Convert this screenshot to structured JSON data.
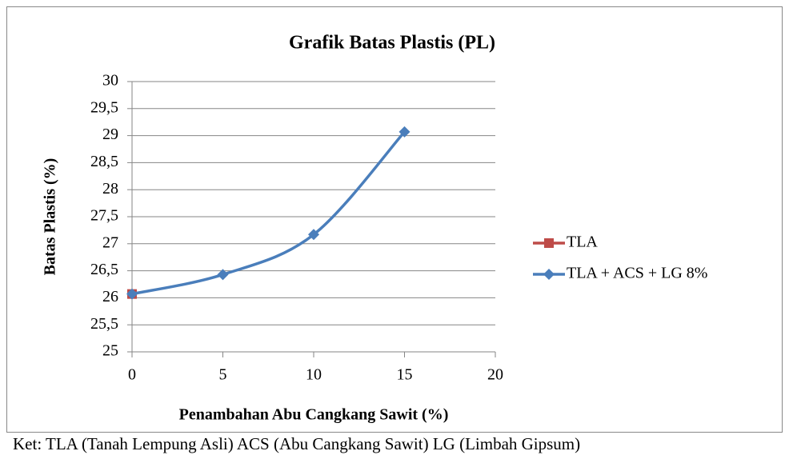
{
  "chart_data": {
    "type": "line",
    "title": "Grafik Batas Plastis (PL)",
    "xlabel": "Penambahan Abu Cangkang Sawit (%)",
    "ylabel": "Batas Plastis (%)",
    "note": "Ket: TLA (Tanah Lempung Asli)  ACS (Abu Cangkang Sawit)  LG (Limbah Gipsum)",
    "series": [
      {
        "name": "TLA",
        "color": "#be4b48",
        "marker": "square",
        "x": [
          0
        ],
        "values": [
          26.07
        ]
      },
      {
        "name": "TLA + ACS + LG 8%",
        "color": "#4a7ebb",
        "marker": "diamond",
        "x": [
          0,
          5,
          10,
          15
        ],
        "values": [
          26.07,
          26.43,
          27.17,
          29.07
        ]
      }
    ],
    "xlim": [
      0,
      20
    ],
    "xticks": [
      0,
      5,
      10,
      15,
      20
    ],
    "ylim": [
      25,
      30
    ],
    "yticks": [
      25,
      {
        "value": 25.5,
        "label": "25,5"
      },
      26,
      {
        "value": 26.5,
        "label": "26,5"
      },
      27,
      {
        "value": 27.5,
        "label": "27,5"
      },
      28,
      {
        "value": 28.5,
        "label": "28,5"
      },
      29,
      {
        "value": 29.5,
        "label": "29,5"
      },
      30
    ],
    "grid": true,
    "smooth": true,
    "legend": "right"
  }
}
